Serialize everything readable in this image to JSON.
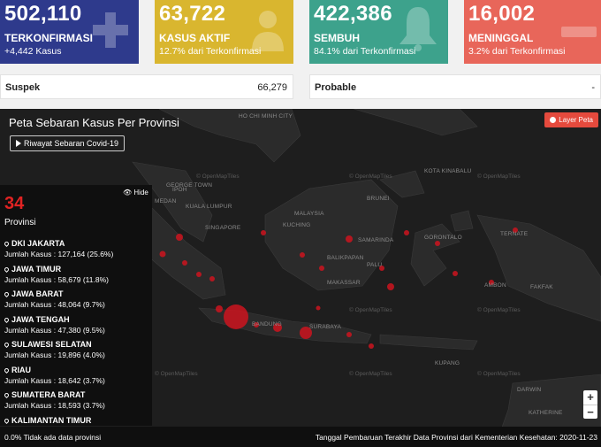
{
  "cards": [
    {
      "number": "502,110",
      "label": "TERKONFIRMASI",
      "sub": "+4,442 Kasus",
      "color": "#2e3a8c",
      "icon": "plus-icon"
    },
    {
      "number": "63,722",
      "label": "KASUS AKTIF",
      "sub": "12.7% dari Terkonfirmasi",
      "color": "#d9b62f",
      "icon": "patient-icon"
    },
    {
      "number": "422,386",
      "label": "SEMBUH",
      "sub": "84.1% dari Terkonfirmasi",
      "color": "#3da28c",
      "icon": "bell-icon"
    },
    {
      "number": "16,002",
      "label": "MENINGGAL",
      "sub": "3.2% dari Terkonfirmasi",
      "color": "#e8665a",
      "icon": "minus-icon"
    }
  ],
  "suspek": {
    "label": "Suspek",
    "value": "66,279"
  },
  "probable": {
    "label": "Probable",
    "value": "-"
  },
  "map": {
    "title": "Peta Sebaran Kasus Per Provinsi",
    "history_button": "Riwayat Sebaran Covid-19",
    "layer_button": "Layer Peta",
    "hide_label": "Hide",
    "province_count": "34",
    "province_label": "Provinsi",
    "provinces": [
      {
        "name": "DKI JAKARTA",
        "cases": "Jumlah Kasus : 127,164 (25.6%)"
      },
      {
        "name": "JAWA TIMUR",
        "cases": "Jumlah Kasus : 58,679 (11.8%)"
      },
      {
        "name": "JAWA BARAT",
        "cases": "Jumlah Kasus : 48,064 (9.7%)"
      },
      {
        "name": "JAWA TENGAH",
        "cases": "Jumlah Kasus : 47,380 (9.5%)"
      },
      {
        "name": "SULAWESI SELATAN",
        "cases": "Jumlah Kasus : 19,896 (4.0%)"
      },
      {
        "name": "RIAU",
        "cases": "Jumlah Kasus : 18,642 (3.7%)"
      },
      {
        "name": "SUMATERA BARAT",
        "cases": "Jumlah Kasus : 18,593 (3.7%)"
      },
      {
        "name": "KALIMANTAN TIMUR",
        "cases": ""
      }
    ],
    "zoom_in": "+",
    "zoom_out": "−",
    "watermark": "© OpenMapTiles",
    "place_labels": [
      "HO CHI MINH CITY",
      "MEDAN",
      "KUALA LUMPUR",
      "SINGAPORE",
      "MALAYSIA",
      "KUCHING",
      "SAMARINDA",
      "BALIKPAPAN",
      "MAKASSAR",
      "BANDUNG",
      "SURABAYA",
      "GEORGE TOWN",
      "IPOH",
      "GORONTALO",
      "TERNATE",
      "AMBON",
      "FAKFAK",
      "KUPANG",
      "KATHERINE",
      "BRUNEI",
      "KOTA KINABALU",
      "PALU",
      "DARWIN"
    ]
  },
  "footer": {
    "left": "0.0% Tidak ada data provinsi",
    "right": "Tanggal Pembaruan Terakhir Data Provinsi dari Kementerian Kesehatan: 2020-11-23"
  },
  "colors": {
    "accent_red": "#e02323",
    "map_bg": "#1e1e1e",
    "land": "#2b2b2b"
  }
}
